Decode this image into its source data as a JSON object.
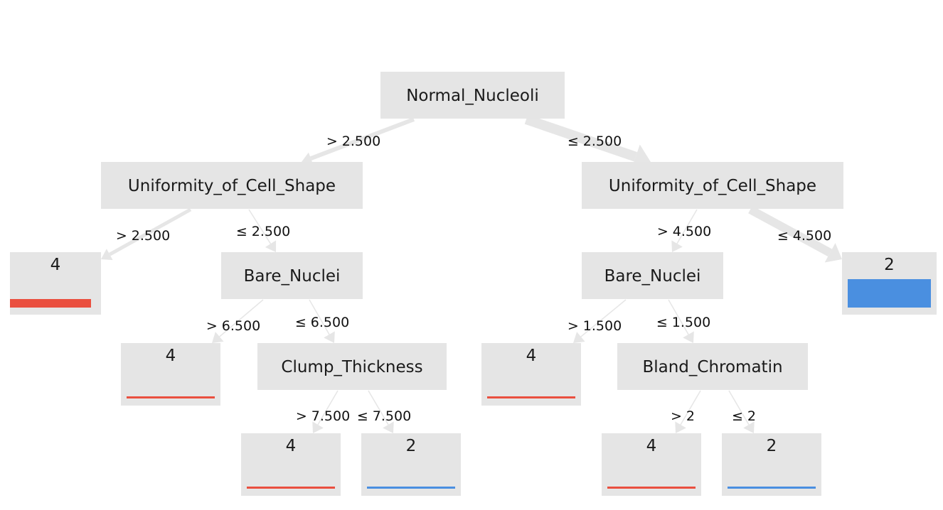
{
  "colors": {
    "class_4": "#ea4f3f",
    "class_2": "#4a8fe0",
    "node_bg": "#e5e5e5",
    "edge": "#e6e6e6"
  },
  "tree": {
    "nodes": [
      {
        "id": "n0",
        "kind": "split",
        "label": "Normal_Nucleoli"
      },
      {
        "id": "n1",
        "kind": "split",
        "label": "Uniformity_of_Cell_Shape"
      },
      {
        "id": "n2",
        "kind": "split",
        "label": "Uniformity_of_Cell_Shape"
      },
      {
        "id": "n3",
        "kind": "leaf",
        "label": "4",
        "class": "4",
        "weight": 0.12
      },
      {
        "id": "n4",
        "kind": "split",
        "label": "Bare_Nuclei"
      },
      {
        "id": "n5",
        "kind": "split",
        "label": "Bare_Nuclei"
      },
      {
        "id": "n6",
        "kind": "leaf",
        "label": "2",
        "class": "2",
        "weight": 0.38
      },
      {
        "id": "n7",
        "kind": "leaf",
        "label": "4",
        "class": "4",
        "weight": 0.01
      },
      {
        "id": "n8",
        "kind": "split",
        "label": "Clump_Thickness"
      },
      {
        "id": "n9",
        "kind": "leaf",
        "label": "4",
        "class": "4",
        "weight": 0.02
      },
      {
        "id": "n10",
        "kind": "split",
        "label": "Bland_Chromatin"
      },
      {
        "id": "n11",
        "kind": "leaf",
        "label": "4",
        "class": "4",
        "weight": 0.01
      },
      {
        "id": "n12",
        "kind": "leaf",
        "label": "2",
        "class": "2",
        "weight": 0.01
      },
      {
        "id": "n13",
        "kind": "leaf",
        "label": "4",
        "class": "4",
        "weight": 0.01
      },
      {
        "id": "n14",
        "kind": "leaf",
        "label": "2",
        "class": "2",
        "weight": 0.01
      }
    ],
    "edges": [
      {
        "from": "n0",
        "to": "n1",
        "label": "> 2.500"
      },
      {
        "from": "n0",
        "to": "n2",
        "label": "≤ 2.500"
      },
      {
        "from": "n1",
        "to": "n3",
        "label": "> 2.500"
      },
      {
        "from": "n1",
        "to": "n4",
        "label": "≤ 2.500"
      },
      {
        "from": "n2",
        "to": "n5",
        "label": "> 4.500"
      },
      {
        "from": "n2",
        "to": "n6",
        "label": "≤ 4.500"
      },
      {
        "from": "n4",
        "to": "n7",
        "label": "> 6.500"
      },
      {
        "from": "n4",
        "to": "n8",
        "label": "≤ 6.500"
      },
      {
        "from": "n5",
        "to": "n9",
        "label": "> 1.500"
      },
      {
        "from": "n5",
        "to": "n10",
        "label": "≤ 1.500"
      },
      {
        "from": "n8",
        "to": "n11",
        "label": "> 7.500"
      },
      {
        "from": "n8",
        "to": "n12",
        "label": "≤ 7.500"
      },
      {
        "from": "n10",
        "to": "n13",
        "label": "> 2"
      },
      {
        "from": "n10",
        "to": "n14",
        "label": "≤ 2"
      }
    ]
  }
}
